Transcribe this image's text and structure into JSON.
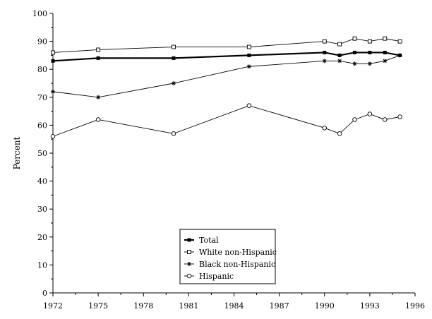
{
  "chart_data": {
    "type": "line",
    "title": "",
    "xlabel": "",
    "ylabel": "Percent",
    "xlim": [
      1972,
      1996
    ],
    "ylim": [
      0,
      100
    ],
    "xticks": [
      1972,
      1975,
      1978,
      1981,
      1984,
      1987,
      1990,
      1993,
      1996
    ],
    "yticks": [
      0,
      10,
      20,
      30,
      40,
      50,
      60,
      70,
      80,
      90,
      100
    ],
    "grid": false,
    "legend_position": "bottom-center",
    "series": [
      {
        "name": "Total",
        "marker": "filled-square",
        "color": "#000000",
        "bold": true,
        "x": [
          1972,
          1975,
          1980,
          1985,
          1990,
          1991,
          1992,
          1993,
          1994,
          1995
        ],
        "values": [
          83,
          84,
          84,
          85,
          86,
          85,
          86,
          86,
          86,
          85
        ]
      },
      {
        "name": "White non-Hispanic",
        "marker": "open-square",
        "color": "#000000",
        "bold": false,
        "x": [
          1972,
          1975,
          1980,
          1985,
          1990,
          1991,
          1992,
          1993,
          1994,
          1995
        ],
        "values": [
          86,
          87,
          88,
          88,
          90,
          89,
          91,
          90,
          91,
          90
        ]
      },
      {
        "name": "Black non-Hispanic",
        "marker": "star",
        "color": "#000000",
        "bold": false,
        "x": [
          1972,
          1975,
          1980,
          1985,
          1990,
          1991,
          1992,
          1993,
          1994,
          1995
        ],
        "values": [
          72,
          70,
          75,
          81,
          83,
          83,
          82,
          82,
          83,
          85
        ]
      },
      {
        "name": "Hispanic",
        "marker": "open-circle",
        "color": "#000000",
        "bold": false,
        "x": [
          1972,
          1975,
          1980,
          1985,
          1990,
          1991,
          1992,
          1993,
          1994,
          1995
        ],
        "values": [
          56,
          62,
          57,
          67,
          59,
          57,
          62,
          64,
          62,
          63
        ]
      }
    ]
  }
}
